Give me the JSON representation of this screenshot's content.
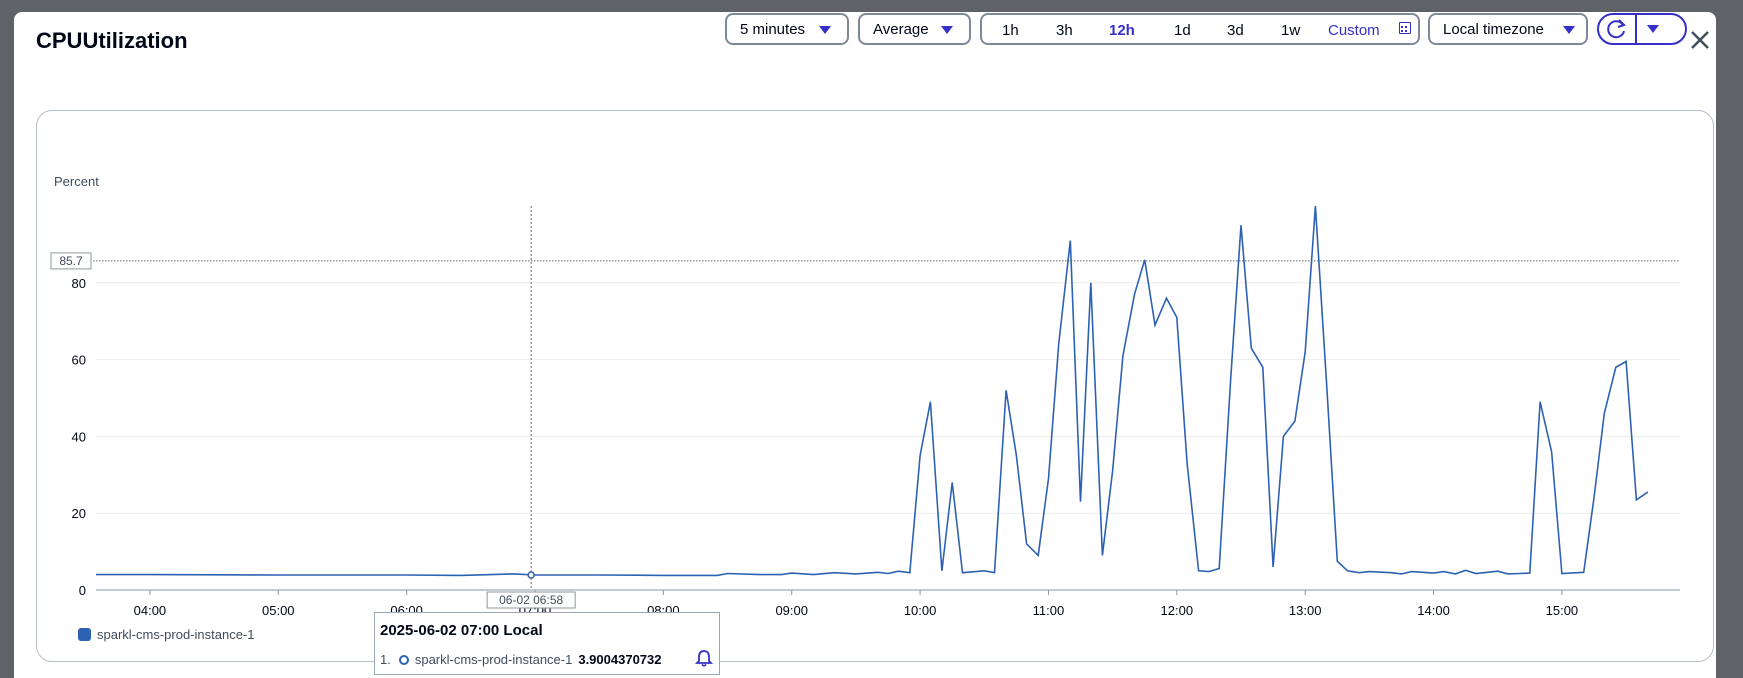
{
  "dialog": {
    "title": "CPUUtilization",
    "period": "5 minutes",
    "statistic": "Average",
    "ranges": [
      "1h",
      "3h",
      "12h",
      "1d",
      "3d",
      "1w"
    ],
    "active_range": "12h",
    "custom_label": "Custom",
    "timezone": "Local timezone"
  },
  "colors": {
    "series": "#2d62b3",
    "accent": "#3530c8"
  },
  "icons": [
    "caret-down-icon",
    "calendar-icon",
    "refresh-icon",
    "close-icon",
    "bell-icon"
  ],
  "chart_data": {
    "type": "line",
    "ylabel": "Percent",
    "ylim": [
      0,
      100
    ],
    "yticks": [
      "0",
      "20",
      "40",
      "60",
      "80"
    ],
    "xticks": [
      "04:00",
      "05:00",
      "06:00",
      "07:00",
      "08:00",
      "09:00",
      "10:00",
      "11:00",
      "12:00",
      "13:00",
      "14:00",
      "15:00"
    ],
    "threshold": {
      "value": 85.7,
      "label": "85.7"
    },
    "cursor": {
      "label": "06-02 06:58",
      "x_hours": 6.97
    },
    "legend": [
      "sparkl-cms-prod-instance-1"
    ],
    "series": [
      {
        "name": "sparkl-cms-prod-instance-1",
        "points": [
          [
            3.58,
            4.0
          ],
          [
            4.0,
            4.0
          ],
          [
            5.0,
            3.9
          ],
          [
            6.0,
            3.9
          ],
          [
            6.42,
            3.8
          ],
          [
            6.83,
            4.2
          ],
          [
            7.0,
            3.9
          ],
          [
            7.5,
            3.9
          ],
          [
            8.0,
            3.8
          ],
          [
            8.42,
            3.8
          ],
          [
            8.5,
            4.3
          ],
          [
            8.75,
            4.0
          ],
          [
            8.92,
            4.0
          ],
          [
            9.0,
            4.4
          ],
          [
            9.17,
            4.0
          ],
          [
            9.33,
            4.5
          ],
          [
            9.5,
            4.2
          ],
          [
            9.67,
            4.6
          ],
          [
            9.75,
            4.3
          ],
          [
            9.83,
            4.9
          ],
          [
            9.92,
            4.5
          ],
          [
            10.0,
            35
          ],
          [
            10.08,
            49
          ],
          [
            10.17,
            5
          ],
          [
            10.25,
            28
          ],
          [
            10.33,
            4.5
          ],
          [
            10.5,
            5
          ],
          [
            10.58,
            4.5
          ],
          [
            10.67,
            52
          ],
          [
            10.75,
            35
          ],
          [
            10.83,
            12
          ],
          [
            10.92,
            9
          ],
          [
            11.0,
            29
          ],
          [
            11.08,
            64
          ],
          [
            11.17,
            91
          ],
          [
            11.25,
            23
          ],
          [
            11.33,
            80
          ],
          [
            11.42,
            9
          ],
          [
            11.5,
            31
          ],
          [
            11.58,
            61
          ],
          [
            11.67,
            77
          ],
          [
            11.75,
            86
          ],
          [
            11.83,
            69
          ],
          [
            11.92,
            76
          ],
          [
            12.0,
            71
          ],
          [
            12.08,
            33
          ],
          [
            12.17,
            5
          ],
          [
            12.25,
            4.8
          ],
          [
            12.33,
            5.6
          ],
          [
            12.42,
            55
          ],
          [
            12.5,
            95
          ],
          [
            12.58,
            63
          ],
          [
            12.67,
            58
          ],
          [
            12.75,
            6
          ],
          [
            12.83,
            40
          ],
          [
            12.92,
            44
          ],
          [
            13.0,
            62
          ],
          [
            13.08,
            100
          ],
          [
            13.17,
            52
          ],
          [
            13.25,
            7.5
          ],
          [
            13.33,
            5
          ],
          [
            13.42,
            4.5
          ],
          [
            13.5,
            4.8
          ],
          [
            13.67,
            4.5
          ],
          [
            13.75,
            4.2
          ],
          [
            13.83,
            4.8
          ],
          [
            14.0,
            4.4
          ],
          [
            14.08,
            4.8
          ],
          [
            14.17,
            4.2
          ],
          [
            14.25,
            5.1
          ],
          [
            14.33,
            4.3
          ],
          [
            14.5,
            4.9
          ],
          [
            14.58,
            4.2
          ],
          [
            14.67,
            4.3
          ],
          [
            14.75,
            4.4
          ],
          [
            14.83,
            49
          ],
          [
            14.92,
            36
          ],
          [
            15.0,
            4.3
          ],
          [
            15.17,
            4.6
          ],
          [
            15.25,
            24
          ],
          [
            15.33,
            46
          ],
          [
            15.42,
            58
          ],
          [
            15.5,
            59.5
          ],
          [
            15.58,
            23.5
          ],
          [
            15.67,
            25.5
          ]
        ]
      }
    ]
  },
  "tooltip": {
    "title": "2025-06-02 07:00 Local",
    "index": "1.",
    "series_name": "sparkl-cms-prod-instance-1",
    "value": "3.9004370732"
  }
}
